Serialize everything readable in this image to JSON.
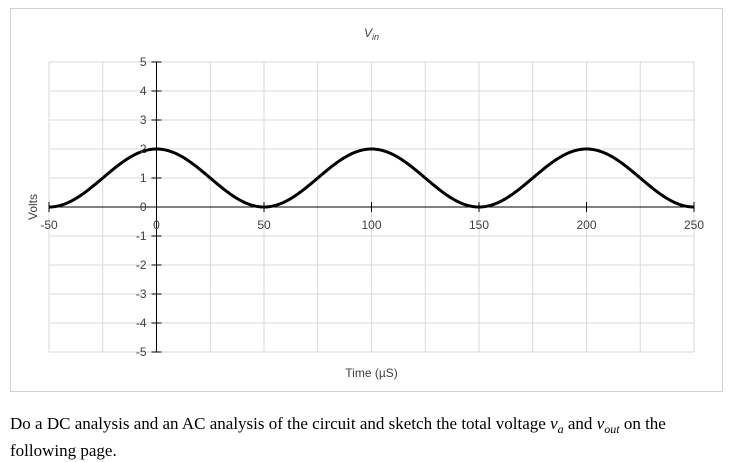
{
  "chart_data": {
    "type": "line",
    "title": "V",
    "title_subscript": "in",
    "xlabel": "Time (µS)",
    "ylabel": "Volts",
    "xlim": [
      -50,
      250
    ],
    "ylim": [
      -5,
      5
    ],
    "xticks": [
      -50,
      0,
      50,
      100,
      150,
      200,
      250
    ],
    "yticks": [
      -5,
      -4,
      -3,
      -2,
      -1,
      0,
      1,
      2,
      3,
      4,
      5
    ],
    "grid": true,
    "series": [
      {
        "name": "",
        "function": "1 + cos(2*pi*t/100)",
        "x": [
          -50,
          -40,
          -30,
          -20,
          -10,
          0,
          10,
          20,
          30,
          40,
          50,
          60,
          70,
          80,
          90,
          100,
          110,
          120,
          130,
          140,
          150,
          160,
          170,
          180,
          190,
          200,
          210,
          220,
          230,
          240,
          250
        ],
        "y": [
          0,
          0.19,
          0.69,
          1.31,
          1.81,
          2,
          1.81,
          1.31,
          0.69,
          0.19,
          0,
          0.19,
          0.69,
          1.31,
          1.81,
          2,
          1.81,
          1.31,
          0.69,
          0.19,
          0,
          0.19,
          0.69,
          1.31,
          1.81,
          2,
          1.81,
          1.31,
          0.69,
          0.19,
          0
        ],
        "color": "#000000"
      }
    ]
  },
  "caption": {
    "text_1": "Do a DC analysis and an AC analysis of the circuit and sketch the total voltage ",
    "var_a": "v",
    "var_a_sub": "a",
    "text_2": " and ",
    "var_out": "v",
    "var_out_sub": "out",
    "text_3": " on the following page."
  }
}
